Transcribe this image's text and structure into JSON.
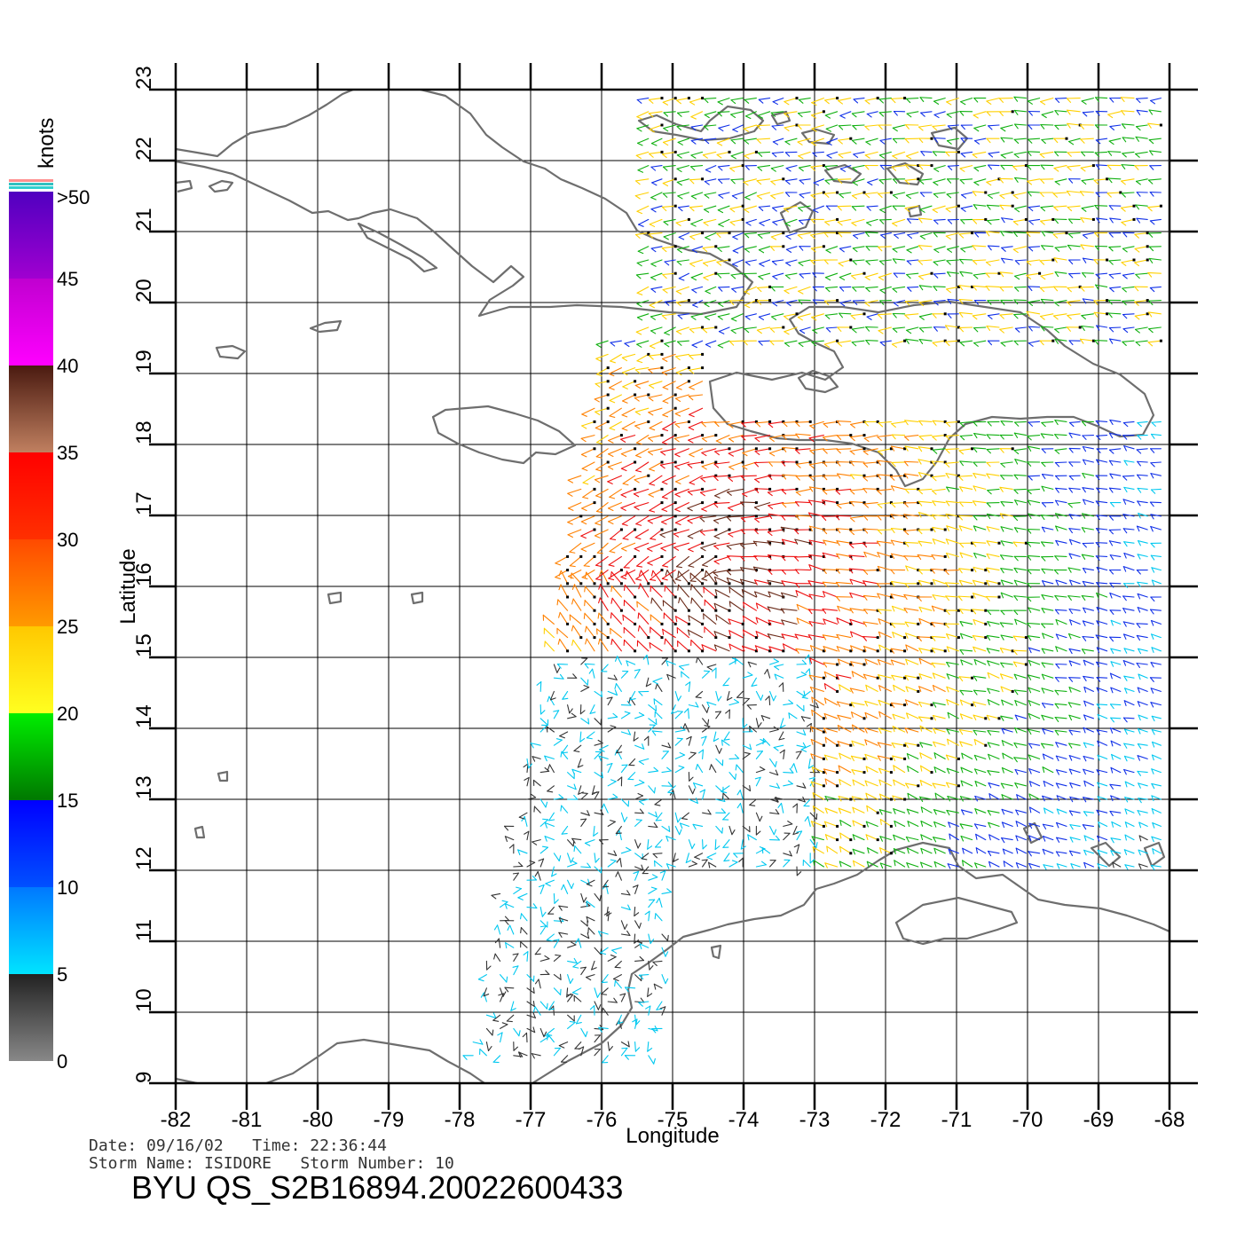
{
  "map": {
    "lon_range": [
      -82,
      -68
    ],
    "lat_range": [
      9,
      23
    ],
    "xlabel": "Longitude",
    "ylabel": "Latitude",
    "lon_ticks": [
      "-82",
      "-81",
      "-80",
      "-79",
      "-78",
      "-77",
      "-76",
      "-75",
      "-74",
      "-73",
      "-72",
      "-71",
      "-70",
      "-69",
      "-68"
    ],
    "lat_ticks": [
      "9",
      "10",
      "11",
      "12",
      "13",
      "14",
      "15",
      "16",
      "17",
      "18",
      "19",
      "20",
      "21",
      "22",
      "23"
    ],
    "grid": true,
    "land_outline_color": "#6e6e6e"
  },
  "colorbar": {
    "title": "knots",
    "labels": [
      "0",
      "5",
      "10",
      "15",
      "20",
      "25",
      "30",
      "35",
      "40",
      "45",
      ">50"
    ],
    "bands": [
      {
        "from": 0,
        "to": 5,
        "top": "#222222",
        "bottom": "#888888"
      },
      {
        "from": 5,
        "to": 10,
        "top": "#0078ff",
        "bottom": "#00e4ff"
      },
      {
        "from": 10,
        "to": 15,
        "top": "#0000ff",
        "bottom": "#0050ff"
      },
      {
        "from": 15,
        "to": 20,
        "top": "#00ee00",
        "bottom": "#007800"
      },
      {
        "from": 20,
        "to": 25,
        "top": "#ffc800",
        "bottom": "#ffff20"
      },
      {
        "from": 25,
        "to": 30,
        "top": "#ff4a00",
        "bottom": "#ff9a00"
      },
      {
        "from": 30,
        "to": 35,
        "top": "#ff0000",
        "bottom": "#ff3000"
      },
      {
        "from": 35,
        "to": 40,
        "top": "#4a1a10",
        "bottom": "#c08060"
      },
      {
        "from": 40,
        "to": 45,
        "top": "#c000d0",
        "bottom": "#ff00ff"
      },
      {
        "from": 45,
        "to": 50,
        "top": "#5000c0",
        "bottom": "#a000d0"
      }
    ],
    "top_stripes": [
      "#ff9090",
      "#30c0c0",
      "#30d0d0"
    ]
  },
  "info": {
    "date_line": "Date: 09/16/02   Time: 22:36:44",
    "storm_line": "Storm Name: ISIDORE   Storm Number: 10",
    "product_title": "BYU QS_S2B16894.20022600433"
  }
}
